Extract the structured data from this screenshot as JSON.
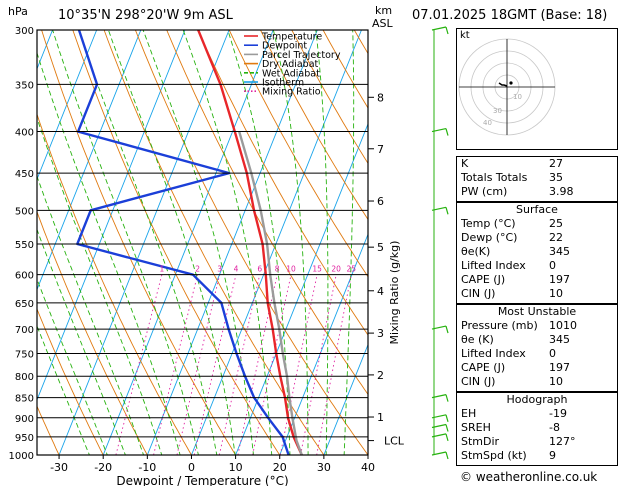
{
  "header": {
    "pressure_unit": "hPa",
    "location": "10°35'N 298°20'W 9m ASL",
    "height_unit_km": "km",
    "height_unit_asl": "ASL",
    "datetime": "07.01.2025 18GMT (Base: 18)"
  },
  "chart_data": {
    "type": "line",
    "xlabel": "Dewpoint / Temperature (°C)",
    "ylabel": "hPa",
    "y2label": "Mixing Ratio (g/kg)",
    "xlim": [
      -35,
      40
    ],
    "ylim": [
      1000,
      300
    ],
    "x_ticks": [
      -30,
      -20,
      -10,
      0,
      10,
      20,
      30,
      40
    ],
    "pressure_levels": [
      300,
      350,
      400,
      450,
      500,
      550,
      600,
      650,
      700,
      750,
      800,
      850,
      900,
      950,
      1000
    ],
    "km_ticks": [
      {
        "km": "8",
        "p": 363
      },
      {
        "km": "7",
        "p": 420
      },
      {
        "km": "6",
        "p": 487
      },
      {
        "km": "5",
        "p": 555
      },
      {
        "km": "4",
        "p": 628
      },
      {
        "km": "3",
        "p": 708
      },
      {
        "km": "2",
        "p": 797
      },
      {
        "km": "1",
        "p": 898
      }
    ],
    "lcl": {
      "label": "LCL",
      "p": 960
    },
    "mixing_ratio_labels": [
      "1",
      "2",
      "3",
      "4",
      "6",
      "8",
      "10",
      "15",
      "20",
      "25"
    ],
    "legend": [
      {
        "name": "Temperature",
        "color": "#e8262a"
      },
      {
        "name": "Dewpoint",
        "color": "#1b3fd8"
      },
      {
        "name": "Parcel Trajectory",
        "color": "#9b9b9b"
      },
      {
        "name": "Dry Adiabat",
        "color": "#e07a10"
      },
      {
        "name": "Wet Adiabat",
        "color": "#27b20f"
      },
      {
        "name": "Isotherm",
        "color": "#19a4ea"
      },
      {
        "name": "Mixing Ratio",
        "color": "#e020a0"
      }
    ],
    "series": [
      {
        "name": "Temperature",
        "color": "#e8262a",
        "points": [
          [
            1000,
            25
          ],
          [
            950,
            21.5
          ],
          [
            900,
            18.5
          ],
          [
            850,
            16
          ],
          [
            800,
            13
          ],
          [
            750,
            10
          ],
          [
            700,
            7
          ],
          [
            650,
            3.5
          ],
          [
            600,
            0.5
          ],
          [
            550,
            -3
          ],
          [
            500,
            -8
          ],
          [
            450,
            -13
          ],
          [
            400,
            -19.5
          ],
          [
            350,
            -27
          ],
          [
            300,
            -37
          ]
        ]
      },
      {
        "name": "Dewpoint",
        "color": "#1b3fd8",
        "points": [
          [
            1000,
            22
          ],
          [
            950,
            19
          ],
          [
            900,
            14
          ],
          [
            850,
            9
          ],
          [
            800,
            5
          ],
          [
            750,
            1
          ],
          [
            700,
            -3
          ],
          [
            650,
            -7
          ],
          [
            600,
            -16
          ],
          [
            550,
            -45
          ],
          [
            500,
            -45
          ],
          [
            450,
            -17
          ],
          [
            400,
            -55
          ],
          [
            350,
            -55
          ],
          [
            300,
            -64
          ]
        ]
      },
      {
        "name": "Parcel Trajectory",
        "color": "#9b9b9b",
        "points": [
          [
            1000,
            25
          ],
          [
            960,
            22.5
          ],
          [
            900,
            19.5
          ],
          [
            850,
            17
          ],
          [
            800,
            14.5
          ],
          [
            750,
            11.5
          ],
          [
            700,
            8.5
          ],
          [
            650,
            5
          ],
          [
            600,
            1.5
          ],
          [
            550,
            -2
          ],
          [
            500,
            -6.5
          ],
          [
            450,
            -12
          ],
          [
            400,
            -18.5
          ]
        ]
      }
    ]
  },
  "hodograph": {
    "label": "kt",
    "ring_labels": [
      "10",
      "30",
      "40"
    ]
  },
  "indices": [
    {
      "label": "K",
      "value": "27"
    },
    {
      "label": "Totals Totals",
      "value": "35"
    },
    {
      "label": "PW (cm)",
      "value": "3.98"
    }
  ],
  "surface": {
    "heading": "Surface",
    "rows": [
      {
        "label": "Temp (°C)",
        "value": "25"
      },
      {
        "label": "Dewp (°C)",
        "value": "22"
      },
      {
        "label": "θe(K)",
        "value": "345"
      },
      {
        "label": "Lifted Index",
        "value": "0"
      },
      {
        "label": "CAPE (J)",
        "value": "197"
      },
      {
        "label": "CIN (J)",
        "value": "10"
      }
    ]
  },
  "most_unstable": {
    "heading": "Most Unstable",
    "rows": [
      {
        "label": "Pressure (mb)",
        "value": "1010"
      },
      {
        "label": "θe (K)",
        "value": "345"
      },
      {
        "label": "Lifted Index",
        "value": "0"
      },
      {
        "label": "CAPE (J)",
        "value": "197"
      },
      {
        "label": "CIN (J)",
        "value": "10"
      }
    ]
  },
  "hodograph_table": {
    "heading": "Hodograph",
    "rows": [
      {
        "label": "EH",
        "value": "-19"
      },
      {
        "label": "SREH",
        "value": "-8"
      },
      {
        "label": "StmDir",
        "value": "127°"
      },
      {
        "label": "StmSpd (kt)",
        "value": "9"
      }
    ]
  },
  "footer": {
    "copyright": "© weatheronline.co.uk"
  }
}
